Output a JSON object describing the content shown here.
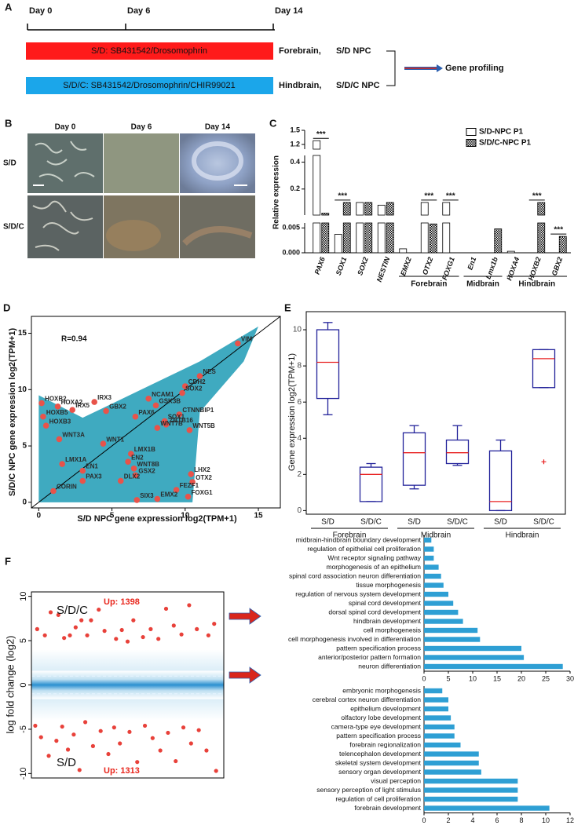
{
  "panel_a": {
    "letter": "A",
    "days": [
      "Day 0",
      "Day 6",
      "Day 14"
    ],
    "protocols": [
      {
        "bar": "S/D: SB431542/Drosomophrin",
        "region": "Forebrain,",
        "npc": "S/D NPC",
        "color": "#ff1a1a"
      },
      {
        "bar": "S/D/C: SB431542/Drosomophrin/CHIR99021",
        "region": "Hindbrain,",
        "npc": "S/D/C NPC",
        "color": "#1ba6ea"
      }
    ],
    "output": "Gene profiling"
  },
  "panel_b": {
    "letter": "B",
    "columns": [
      "Day 0",
      "Day 6",
      "Day 14"
    ],
    "rows": [
      "S/D",
      "S/D/C"
    ]
  },
  "chart_data": [
    {
      "type": "broken_bar",
      "letter": "C",
      "ylabel": "Relative expression",
      "categories": [
        "PAX6",
        "SOX1",
        "SOX2",
        "NESTIN",
        "EMX2",
        "OTX2",
        "FOXG1",
        "En1",
        "Lmx1b",
        "HOXA4",
        "HOXB2",
        "GBX2"
      ],
      "category_groups": [
        null,
        null,
        null,
        null,
        "Forebrain",
        "Forebrain",
        "Forebrain",
        "Midbrain",
        "Midbrain",
        "Hindbrain",
        "Hindbrain",
        "Hindbrain"
      ],
      "significance": [
        "***",
        "***",
        null,
        null,
        null,
        "***",
        "***",
        null,
        null,
        null,
        "***",
        "***"
      ],
      "series": [
        {
          "name": "S/D-NPC P1",
          "color": "#ffffff",
          "values": [
            1.28,
            0.0037,
            0.1,
            0.08,
            0.0008,
            0.1,
            0.1,
            0,
            0,
            0.0003,
            0,
            0
          ]
        },
        {
          "name": "S/D/C-NPC P1",
          "color": "#000000",
          "pattern": "checkered",
          "values": [
            0.02,
            0.1,
            0.1,
            0.1,
            0,
            0.0058,
            0,
            0,
            0.0048,
            0,
            0.1,
            0.0033
          ]
        }
      ],
      "y_segments": [
        [
          0,
          0.006
        ],
        [
          0.006,
          0.45
        ],
        [
          1.1,
          1.5
        ]
      ],
      "yticks": [
        {
          "value": 0,
          "label": "0.000"
        },
        0.005,
        0.2,
        0.4,
        1.2,
        1.5
      ]
    },
    {
      "type": "scatter",
      "letter": "D",
      "xlabel": "S/D NPC gene expression log2(TPM+1)",
      "ylabel": "S/D/C NPC gene expression log2(TPM+1)",
      "annotation": "R=0.94",
      "color": "#e8534a",
      "point_labels": [
        "VIM",
        "NES",
        "CDH2",
        "SOX2",
        "NCAM1",
        "GSK3B",
        "CTNNBIP1",
        "PAX6",
        "SOX1",
        "ZBTB16",
        "WNT5B",
        "WNT7B",
        "HOXB2",
        "HOXA2",
        "IRX3",
        "IRX5",
        "GBX2",
        "HOXB5",
        "HOXB3",
        "WNT3A",
        "WNT1",
        "LMX1B",
        "EN2",
        "WNT8B",
        "EN1",
        "LMX1A",
        "GSX2",
        "DLX2",
        "LHX2",
        "OTX2",
        "FEZF1",
        "FOXG1",
        "EMX2",
        "SIX3",
        "CORIN",
        "PAX3"
      ],
      "x": [
        13.6,
        11.0,
        10.0,
        9.8,
        7.5,
        8.0,
        9.6,
        6.6,
        8.6,
        8.7,
        10.3,
        8.1,
        0.2,
        1.3,
        3.8,
        2.3,
        4.6,
        0.3,
        0.5,
        1.4,
        4.4,
        6.3,
        6.1,
        6.5,
        3.0,
        1.6,
        6.6,
        5.6,
        10.4,
        10.5,
        9.4,
        10.2,
        8.1,
        6.7,
        1.0,
        3.0
      ],
      "values": [
        14.1,
        11.2,
        10.3,
        9.7,
        9.2,
        8.6,
        7.8,
        7.6,
        7.2,
        6.9,
        6.4,
        6.6,
        8.8,
        8.5,
        8.9,
        8.2,
        8.1,
        7.6,
        6.8,
        5.6,
        5.2,
        4.3,
        3.6,
        3.0,
        2.8,
        3.4,
        2.4,
        1.9,
        2.5,
        1.8,
        1.1,
        0.5,
        0.3,
        0.2,
        1.0,
        1.9
      ],
      "xlim": [
        -0.5,
        16.5
      ],
      "ylim": [
        -0.5,
        16.5
      ],
      "xticks": [
        0,
        5,
        10,
        15
      ],
      "yticks": [
        0,
        5,
        10,
        15
      ]
    },
    {
      "type": "box",
      "letter": "E",
      "ylabel": "Gene expression log2(TPM+1)",
      "categories": [
        "S/D",
        "S/D/C",
        "S/D",
        "S/D/C",
        "S/D",
        "S/D/C"
      ],
      "category_groups": [
        "Forebrain",
        "Forebrain",
        "Midbrain",
        "Midbrain",
        "Hindbrain",
        "Hindbrain"
      ],
      "boxes": [
        {
          "min": 5.3,
          "q1": 6.2,
          "median": 8.2,
          "q3": 10.0,
          "max": 10.4
        },
        {
          "min": 0.5,
          "q1": 0.5,
          "median": 2.0,
          "q3": 2.4,
          "max": 2.6
        },
        {
          "min": 1.2,
          "q1": 1.4,
          "median": 3.2,
          "q3": 4.3,
          "max": 4.7
        },
        {
          "min": 2.5,
          "q1": 2.6,
          "median": 3.2,
          "q3": 3.9,
          "max": 4.7
        },
        {
          "min": 0,
          "q1": 0,
          "median": 0.5,
          "q3": 3.3,
          "max": 3.9
        },
        {
          "min": 6.8,
          "q1": 6.8,
          "median": 8.4,
          "q3": 8.9,
          "max": 8.9
        }
      ],
      "outliers": [
        [],
        [],
        [],
        [],
        [],
        [
          2.7
        ]
      ],
      "box_color": "#22229a",
      "median_color": "#e82020",
      "ylim": [
        -0.2,
        11
      ],
      "yticks": [
        0,
        2,
        4,
        6,
        8,
        10
      ]
    },
    {
      "type": "ma",
      "letter": "F",
      "ylabel": "log fold change (log2)",
      "thresholds": [
        -1,
        1
      ],
      "series": [
        {
          "name": "S/D/C",
          "label": "Up: 1398",
          "color": "#e8413a",
          "x": [
            3,
            7,
            10,
            14,
            17,
            20,
            23,
            26,
            29,
            31,
            35,
            38,
            44,
            47,
            50,
            53,
            58,
            62,
            66,
            70,
            74,
            78,
            82,
            86,
            92,
            95
          ],
          "values": [
            6.3,
            5.6,
            8.2,
            7.9,
            5.3,
            5.6,
            6.5,
            7.3,
            5.6,
            7.3,
            8.5,
            6.1,
            5.2,
            6.2,
            4.9,
            7.3,
            5.4,
            6.3,
            5.2,
            8.6,
            6.7,
            5.7,
            9.0,
            6.3,
            5.6,
            6.9
          ]
        },
        {
          "name": "S/D",
          "label": "Up: 1313",
          "color": "#e8413a",
          "x": [
            2,
            5,
            9,
            13,
            16,
            19,
            22,
            25,
            28,
            32,
            36,
            40,
            43,
            46,
            51,
            55,
            59,
            63,
            67,
            71,
            75,
            79,
            83,
            87,
            91,
            96
          ],
          "values": [
            -4.6,
            -5.9,
            -8.0,
            -6.3,
            -4.7,
            -7.3,
            -5.6,
            -9.6,
            -4.2,
            -6.9,
            -5.2,
            -7.8,
            -4.8,
            -6.6,
            -5.3,
            -8.7,
            -4.6,
            -6.0,
            -7.4,
            -5.4,
            -8.6,
            -4.8,
            -6.6,
            -5.1,
            -7.4,
            -9.7
          ]
        }
      ],
      "xlim": [
        0,
        100
      ],
      "ylim": [
        -10.5,
        10.5
      ],
      "yticks": [
        -10,
        -5,
        0,
        5,
        10
      ]
    },
    {
      "type": "hbar",
      "color": "#2e9fd4",
      "categories": [
        "midbrain-hindbrain boundary development",
        "regulation of epithelial cell proliferation",
        "Wnt receptor signaling pathway",
        "morphogenesis of an epithelium",
        "spinal cord association neuron differentiation",
        "tissue morphogenesis",
        "regulation of nervous system development",
        "spinal cord development",
        "dorsal spinal cord development",
        "hindbrain development",
        "cell morphogenesis",
        "cell morphogenesis involved in differentiation",
        "pattern specification process",
        "anterior/posterior pattern formation",
        "neuron differentiation"
      ],
      "values": [
        1.5,
        2,
        2,
        3,
        3.5,
        4,
        5,
        6,
        7,
        8,
        11,
        11.5,
        20,
        20.5,
        28.5
      ],
      "xlim": [
        0,
        30
      ],
      "xticks": [
        0,
        5,
        10,
        15,
        20,
        25,
        30
      ]
    },
    {
      "type": "hbar",
      "color": "#2e9fd4",
      "categories": [
        "embryonic morphogenesis",
        "cerebral cortex neuron differentiation",
        "epithelium development",
        "olfactory lobe development",
        "camera-type eye development",
        "pattern specification process",
        "forebrain regionalization",
        "telencephalon development",
        "skeletal system development",
        "sensory organ development",
        "visual perception",
        "sensory perception of light stimulus",
        "regulation of cell proliferation",
        "forebrain development"
      ],
      "values": [
        1.5,
        2,
        2,
        2.2,
        2.5,
        2.5,
        3,
        4.5,
        4.5,
        4.7,
        7.7,
        7.7,
        7.7,
        10.3
      ],
      "xlim": [
        0,
        12
      ],
      "xticks": [
        0,
        2,
        4,
        6,
        8,
        10,
        12
      ]
    }
  ]
}
